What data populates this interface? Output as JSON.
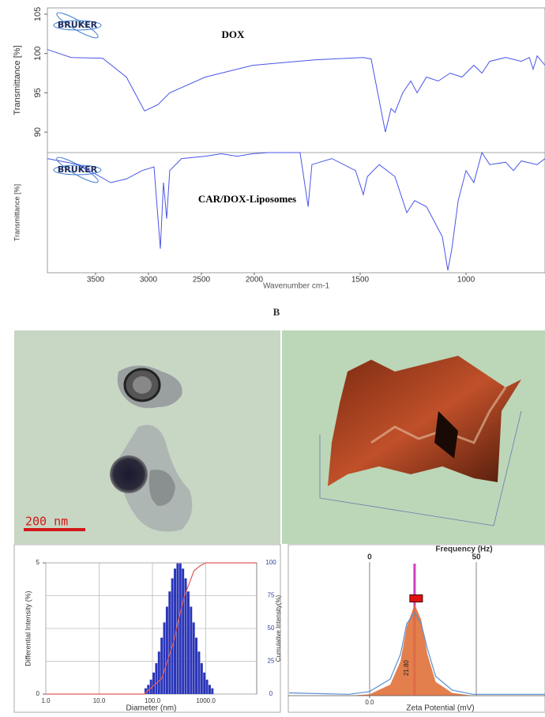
{
  "figure": {
    "panel_label": "B",
    "tem_scale_bar": "200 nm"
  },
  "chart_data": [
    {
      "type": "line",
      "logo": "BRUKER",
      "annotation": "DOX",
      "ylabel": "Transmittance [%]",
      "xlim": [
        3955,
        627
      ],
      "x_scale_break": 2000,
      "x_scale_ratio": 2,
      "ylim": [
        87.4,
        105.8
      ],
      "yticks": [
        90,
        95,
        100,
        105
      ],
      "x": [
        3955,
        3731,
        3433,
        3209,
        3037,
        2910,
        2799,
        2463,
        2015,
        1709,
        1485,
        1448,
        1381,
        1354,
        1336,
        1299,
        1261,
        1231,
        1187,
        1131,
        1075,
        1019,
        963,
        925,
        888,
        813,
        739,
        701,
        683,
        664,
        627
      ],
      "series": [
        {
          "color": "#4a55e8",
          "values": [
            100.5,
            99.5,
            99.4,
            97,
            92.7,
            93.5,
            95,
            97,
            98.5,
            99.2,
            99.5,
            99.3,
            90,
            93,
            92.5,
            95,
            96.5,
            95,
            97,
            96.5,
            97.5,
            97,
            98.5,
            97.5,
            99,
            99.5,
            99,
            99.5,
            98,
            99.7,
            98.5
          ]
        }
      ]
    },
    {
      "type": "line",
      "logo": "BRUKER",
      "annotation": "CAR/DOX-Liposomes",
      "ylabel": "Transmittance [%]",
      "xlabel": "Wavenumber cm-1",
      "xlim": [
        3955,
        627
      ],
      "x_scale_break": 2000,
      "x_scale_ratio": 2,
      "xticks": [
        3500,
        3000,
        2500,
        2000,
        1500,
        1000
      ],
      "ylim": [
        0,
        100
      ],
      "x": [
        3955,
        3657,
        3358,
        3209,
        3060,
        2948,
        2888,
        2858,
        2828,
        2799,
        2687,
        2463,
        2313,
        2164,
        2015,
        1933,
        1784,
        1746,
        1728,
        1634,
        1522,
        1485,
        1466,
        1410,
        1336,
        1280,
        1243,
        1187,
        1112,
        1086,
        1067,
        1037,
        1000,
        963,
        925,
        888,
        813,
        776,
        739,
        664,
        627
      ],
      "series": [
        {
          "color": "#4a55e8",
          "values": [
            95,
            90,
            75,
            78,
            85,
            88,
            20,
            75,
            45,
            85,
            95,
            97,
            99,
            97,
            99,
            100,
            100,
            55,
            90,
            95,
            85,
            65,
            80,
            90,
            80,
            50,
            60,
            55,
            30,
            2,
            20,
            60,
            85,
            75,
            100,
            90,
            92,
            85,
            93,
            90,
            95
          ]
        }
      ]
    },
    {
      "type": "histogram",
      "xlabel": "Diameter (nm)",
      "ylabel": "Differential Intensity (%)",
      "y2label": "Cumulative Intensity(%)",
      "xlog": true,
      "xlim": [
        1,
        9000
      ],
      "xticks": [
        {
          "value": 1,
          "label": "1.0"
        },
        {
          "value": 10,
          "label": "10.0"
        },
        {
          "value": 100,
          "label": "100.0"
        },
        {
          "value": 1000,
          "label": "1000.0"
        }
      ],
      "ylim": [
        0,
        5
      ],
      "yticks": [
        0,
        5
      ],
      "y2lim": [
        0,
        100
      ],
      "y2ticks": [
        0,
        25,
        50,
        75,
        100
      ],
      "grid": true,
      "color": "#2a35b8",
      "bins": [
        70.8,
        79.4,
        89.1,
        100,
        112.2,
        125.9,
        141.3,
        158.5,
        177.8,
        199.5,
        223.9,
        251.2,
        281.8,
        316.2,
        354.8,
        398.1,
        446.7,
        501.2,
        562.3,
        631,
        707.9,
        794.3,
        891.3,
        1000,
        1122,
        1259,
        1413
      ],
      "values": [
        0.22,
        0.35,
        0.55,
        0.82,
        1.18,
        1.62,
        2.15,
        2.73,
        3.33,
        3.91,
        4.41,
        4.78,
        4.98,
        4.98,
        4.78,
        4.41,
        3.91,
        3.33,
        2.73,
        2.15,
        1.62,
        1.18,
        0.82,
        0.55,
        0.35,
        0.22
      ],
      "cumulative": {
        "axis": "y2",
        "color": "#e05a5a",
        "x": [
          1,
          70,
          150,
          250,
          300,
          400,
          600,
          800,
          1000,
          1500,
          9000
        ],
        "values": [
          0,
          0,
          12,
          40,
          55,
          75,
          94,
          98,
          100,
          100,
          100
        ]
      }
    },
    {
      "type": "area",
      "x2label": "Frequency (Hz)",
      "xlabel": "Zeta Potential (mV)",
      "xlim": [
        -39.4,
        85
      ],
      "xticks": [
        {
          "value": 0,
          "label": "0.0"
        }
      ],
      "x2lim": [
        -38.1,
        82.2
      ],
      "x2ticks": [
        0,
        50
      ],
      "grid": true,
      "ylim": [
        0,
        100
      ],
      "peak": 21.8,
      "peak_label": "21.80",
      "peak_color": "#d040c0",
      "x": [
        -39,
        -10,
        0,
        10,
        15,
        18,
        21.8,
        25,
        28,
        32,
        40,
        50,
        85
      ],
      "series": [
        {
          "style": "area",
          "color": "#e0703a",
          "values": [
            0,
            0,
            1,
            8,
            25,
            50,
            66,
            55,
            30,
            10,
            2,
            0,
            0
          ]
        },
        {
          "style": "line",
          "color": "#5a8ed0",
          "values": [
            2,
            1,
            3,
            12,
            30,
            52,
            60,
            52,
            34,
            14,
            4,
            1,
            1
          ]
        }
      ]
    }
  ]
}
